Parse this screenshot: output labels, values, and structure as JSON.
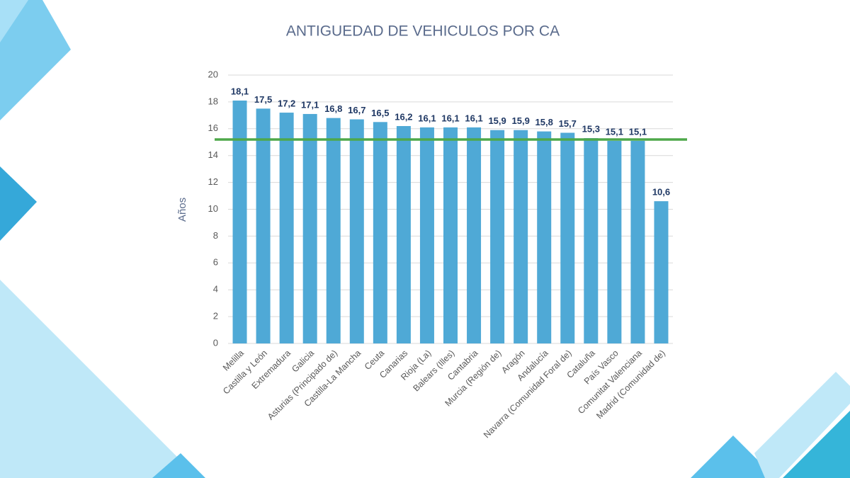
{
  "chart_data": {
    "type": "bar",
    "title": "ANTIGUEDAD DE VEHICULOS POR CA",
    "y_label": "Años",
    "categories": [
      "Melilla",
      "Castilla y León",
      "Extremadura",
      "Galicia",
      "Asturias (Principado de)",
      "Castilla-La Mancha",
      "Ceuta",
      "Canarias",
      "Rioja (La)",
      "Balears (Illes)",
      "Cantabria",
      "Murcia (Región de)",
      "Aragón",
      "Andalucía",
      "Navarra (Comunidad Foral de)",
      "Cataluña",
      "País Vasco",
      "Comunitat Valenciana",
      "Madrid (Comunidad de)"
    ],
    "values": [
      18.1,
      17.5,
      17.2,
      17.1,
      16.8,
      16.7,
      16.5,
      16.2,
      16.1,
      16.1,
      16.1,
      15.9,
      15.9,
      15.8,
      15.7,
      15.3,
      15.1,
      15.1,
      10.6
    ],
    "value_labels": [
      "18,1",
      "17,5",
      "17,2",
      "17,1",
      "16,8",
      "16,7",
      "16,5",
      "16,2",
      "16,1",
      "16,1",
      "16,1",
      "15,9",
      "15,9",
      "15,8",
      "15,7",
      "15,3",
      "15,1",
      "15,1",
      "10,6"
    ],
    "color": "#4fa9d6",
    "ylim": [
      0,
      20
    ],
    "yticks": [
      0,
      2,
      4,
      6,
      8,
      10,
      12,
      14,
      16,
      18,
      20
    ],
    "grid": true,
    "reference_line": {
      "value": 15.2,
      "color": "#4ea84a"
    }
  }
}
